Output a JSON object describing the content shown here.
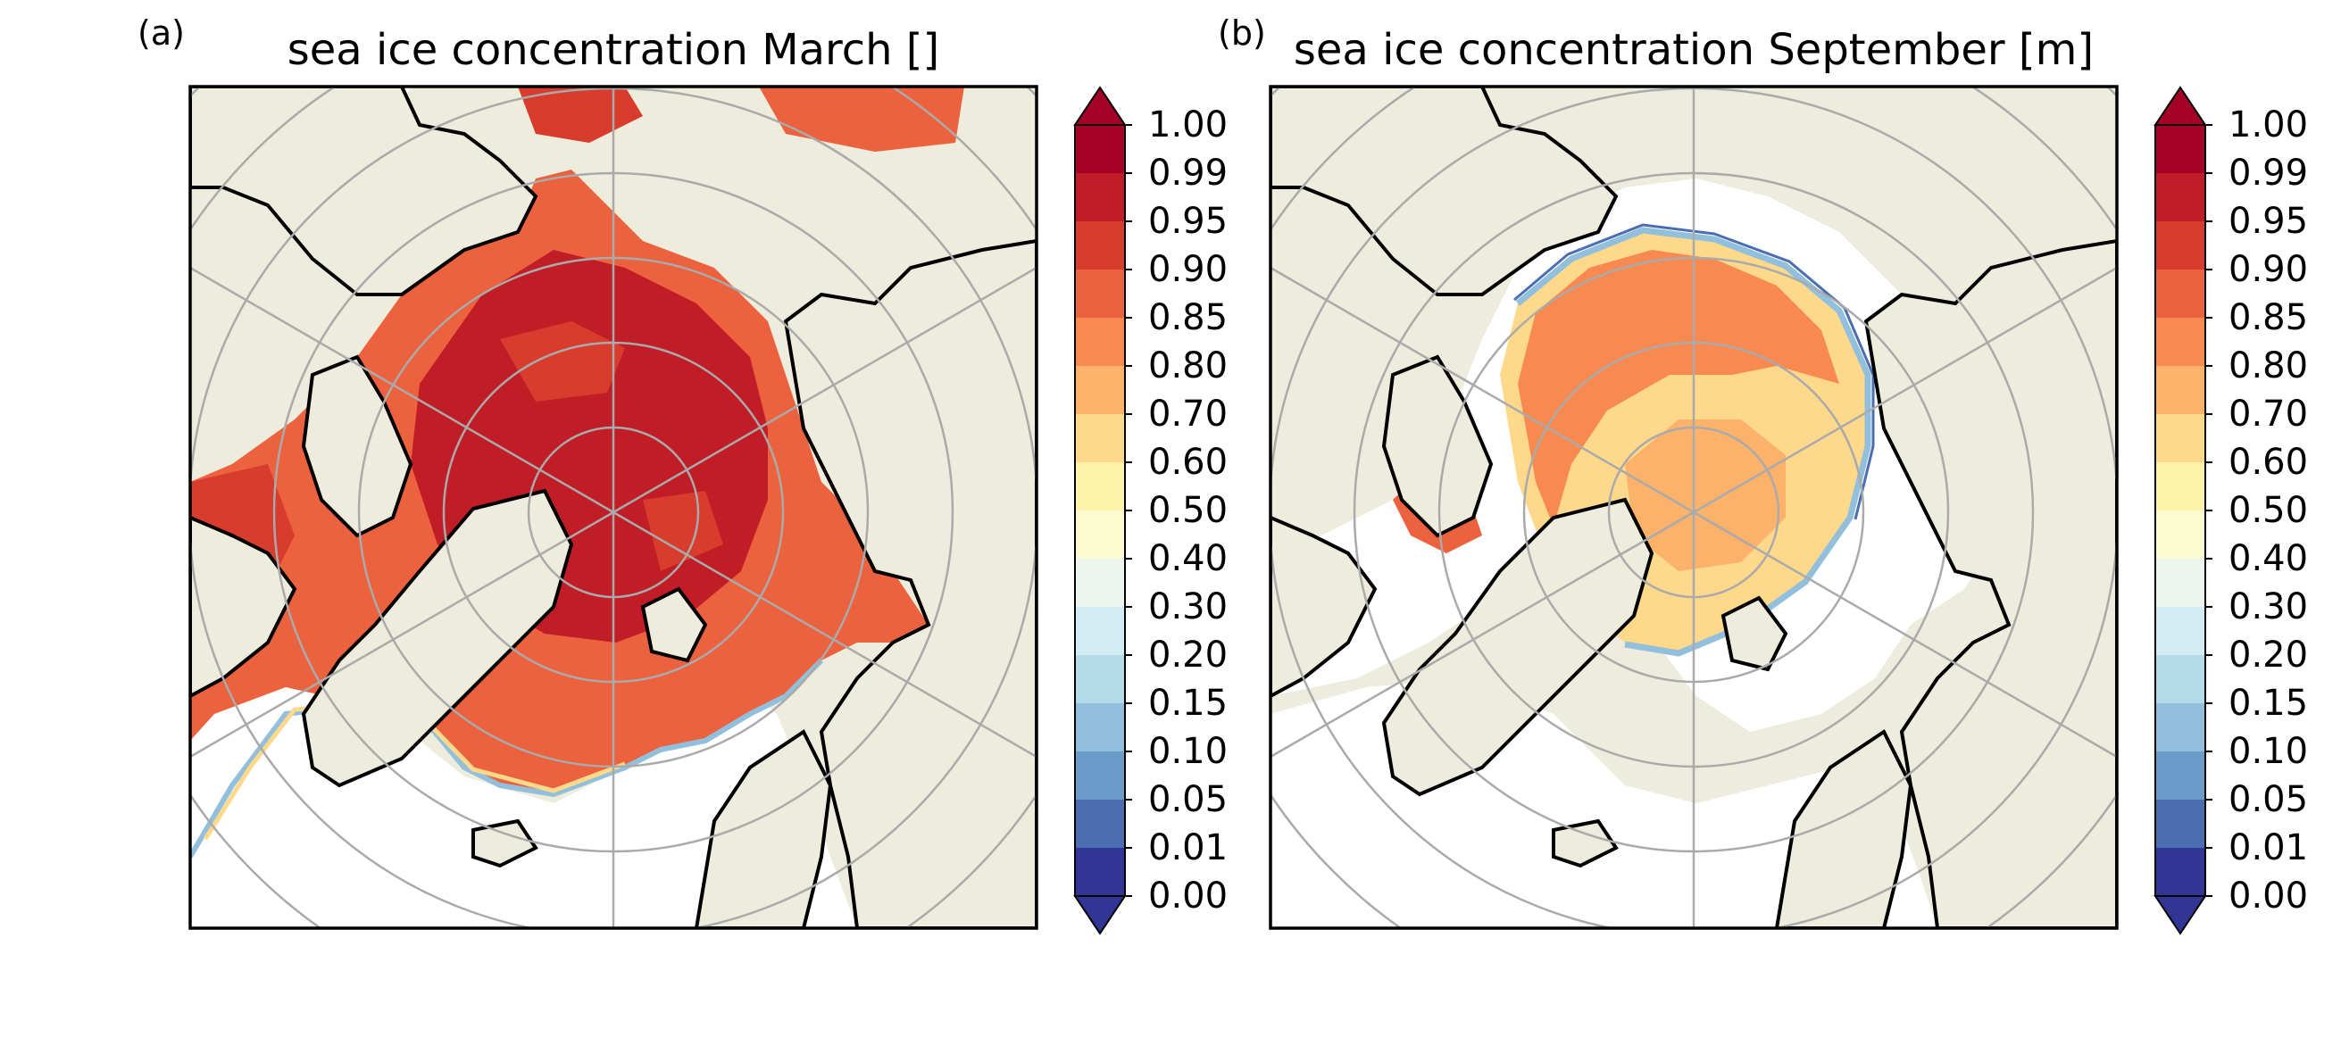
{
  "figure": {
    "panels": [
      {
        "label": "(a)",
        "title": "sea ice concentration March []",
        "scheme": "march",
        "colorbar": {
          "ticks": [
            "1.00",
            "0.99",
            "0.95",
            "0.90",
            "0.85",
            "0.80",
            "0.70",
            "0.60",
            "0.50",
            "0.40",
            "0.30",
            "0.20",
            "0.15",
            "0.10",
            "0.05",
            "0.01",
            "0.00"
          ]
        }
      },
      {
        "label": "(b)",
        "title": "sea ice concentration September [m]",
        "scheme": "september",
        "colorbar": {
          "ticks": [
            "1.00",
            "0.99",
            "0.95",
            "0.90",
            "0.85",
            "0.80",
            "0.70",
            "0.60",
            "0.50",
            "0.40",
            "0.30",
            "0.20",
            "0.15",
            "0.10",
            "0.05",
            "0.01",
            "0.00"
          ]
        }
      }
    ],
    "colors": {
      "land": "#eeecdc",
      "ocean": "#ffffff",
      "graticule": "#aaaaaa",
      "coast": "#000000",
      "levels": [
        "#313695",
        "#4a6eb0",
        "#6b9bc9",
        "#92c0dc",
        "#b3dbea",
        "#d3ebf3",
        "#edf6ee",
        "#fafcd0",
        "#fff3aa",
        "#fed98c",
        "#fcb26a",
        "#f88a51",
        "#ec623f",
        "#d73c2d",
        "#c01d27",
        "#a50026"
      ],
      "extend_low": "#313695",
      "extend_high": "#a50026"
    }
  }
}
